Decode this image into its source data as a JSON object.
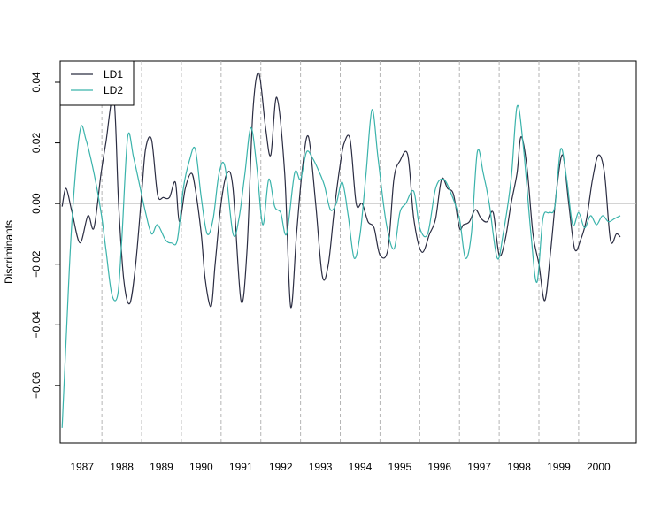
{
  "chart_data": {
    "type": "line",
    "title": "",
    "xlabel": "",
    "ylabel": "Discriminants",
    "xlim": [
      1986.45,
      2000.95
    ],
    "ylim": [
      -0.079,
      0.047
    ],
    "yticks": [
      -0.06,
      -0.04,
      -0.02,
      0.0,
      0.02,
      0.04
    ],
    "ytick_labels": [
      "−0.06",
      "−0.04",
      "−0.02",
      "0.00",
      "0.02",
      "0.04"
    ],
    "xticks": [
      1987,
      1988,
      1989,
      1990,
      1991,
      1992,
      1993,
      1994,
      1995,
      1996,
      1997,
      1998,
      1999,
      2000
    ],
    "xtick_labels": [
      "1987",
      "1988",
      "1989",
      "1990",
      "1991",
      "1992",
      "1993",
      "1994",
      "1995",
      "1996",
      "1997",
      "1998",
      "1999",
      "2000"
    ],
    "vlines": [
      1987.5,
      1988.5,
      1989.5,
      1990.5,
      1991.5,
      1992.5,
      1993.5,
      1994.5,
      1995.5,
      1996.5,
      1997.5,
      1998.5,
      1999.5
    ],
    "hline": 0,
    "grid": false,
    "legend": {
      "position": "top-left",
      "entries": [
        "LD1",
        "LD2"
      ]
    },
    "series": [
      {
        "name": "LD1",
        "color": "#2b2d42",
        "x": [
          1986.5,
          1986.6,
          1986.75,
          1986.95,
          1987.15,
          1987.3,
          1987.48,
          1987.6,
          1987.8,
          1987.92,
          1988.05,
          1988.2,
          1988.35,
          1988.5,
          1988.6,
          1988.75,
          1988.9,
          1989.05,
          1989.2,
          1989.35,
          1989.45,
          1989.6,
          1989.75,
          1989.85,
          1990.0,
          1990.1,
          1990.25,
          1990.35,
          1990.5,
          1990.65,
          1990.8,
          1991.0,
          1991.15,
          1991.3,
          1991.45,
          1991.62,
          1991.75,
          1991.9,
          1992.1,
          1992.25,
          1992.4,
          1992.55,
          1992.7,
          1992.88,
          1993.05,
          1993.2,
          1993.35,
          1993.5,
          1993.6,
          1993.75,
          1993.9,
          1994.05,
          1994.2,
          1994.35,
          1994.5,
          1994.7,
          1994.85,
          1995.0,
          1995.2,
          1995.35,
          1995.55,
          1995.75,
          1995.9,
          1996.05,
          1996.2,
          1996.35,
          1996.5,
          1996.6,
          1996.75,
          1996.9,
          1997.05,
          1997.2,
          1997.35,
          1997.5,
          1997.65,
          1997.8,
          1997.95,
          1998.05,
          1998.2,
          1998.35,
          1998.5,
          1998.65,
          1998.8,
          1998.95,
          1999.1,
          1999.25,
          1999.4,
          1999.55,
          1999.7,
          1999.85,
          2000.0,
          2000.15,
          2000.3,
          2000.45,
          2000.55
        ],
        "y": [
          -0.001,
          0.005,
          -0.003,
          -0.013,
          -0.004,
          -0.008,
          0.01,
          0.02,
          0.035,
          0.0,
          -0.025,
          -0.033,
          -0.02,
          0.003,
          0.018,
          0.021,
          0.003,
          0.002,
          0.002,
          0.007,
          -0.006,
          0.005,
          0.01,
          0.005,
          -0.01,
          -0.025,
          -0.034,
          -0.02,
          0.0,
          0.01,
          0.005,
          -0.032,
          -0.016,
          0.03,
          0.043,
          0.025,
          0.016,
          0.035,
          0.01,
          -0.034,
          -0.01,
          0.012,
          0.022,
          0.0,
          -0.024,
          -0.02,
          -0.002,
          0.013,
          0.02,
          0.021,
          0.0,
          0.0,
          -0.006,
          -0.008,
          -0.017,
          -0.015,
          0.008,
          0.014,
          0.016,
          -0.005,
          -0.016,
          -0.01,
          -0.005,
          0.008,
          0.005,
          0.003,
          -0.008,
          -0.007,
          -0.006,
          -0.002,
          -0.005,
          -0.006,
          -0.003,
          -0.017,
          -0.012,
          0.0,
          0.01,
          0.022,
          0.012,
          -0.01,
          -0.02,
          -0.032,
          -0.015,
          0.005,
          0.016,
          0.0,
          -0.015,
          -0.012,
          -0.005,
          0.008,
          0.016,
          0.01,
          -0.012,
          -0.01,
          -0.011
        ]
      },
      {
        "name": "LD2",
        "color": "#3ab3ab",
        "x": [
          1986.5,
          1986.6,
          1986.75,
          1986.95,
          1987.1,
          1987.3,
          1987.48,
          1987.6,
          1987.75,
          1987.9,
          1988.0,
          1988.15,
          1988.3,
          1988.5,
          1988.6,
          1988.75,
          1988.9,
          1989.1,
          1989.25,
          1989.4,
          1989.55,
          1989.7,
          1989.85,
          1990.0,
          1990.15,
          1990.3,
          1990.45,
          1990.6,
          1990.8,
          1990.95,
          1991.1,
          1991.25,
          1991.4,
          1991.55,
          1991.7,
          1991.85,
          1992.0,
          1992.15,
          1992.35,
          1992.5,
          1992.65,
          1992.8,
          1992.95,
          1993.1,
          1993.25,
          1993.4,
          1993.55,
          1993.7,
          1993.85,
          1994.0,
          1994.15,
          1994.3,
          1994.45,
          1994.65,
          1994.85,
          1995.0,
          1995.15,
          1995.35,
          1995.5,
          1995.7,
          1995.9,
          1996.1,
          1996.3,
          1996.5,
          1996.65,
          1996.8,
          1996.95,
          1997.1,
          1997.25,
          1997.45,
          1997.6,
          1997.8,
          1997.95,
          1998.1,
          1998.3,
          1998.45,
          1998.6,
          1998.75,
          1998.9,
          1999.05,
          1999.2,
          1999.35,
          1999.5,
          1999.65,
          1999.8,
          1999.95,
          2000.1,
          2000.25,
          2000.4,
          2000.55
        ],
        "y": [
          -0.074,
          -0.045,
          -0.005,
          0.024,
          0.021,
          0.01,
          -0.003,
          -0.015,
          -0.03,
          -0.03,
          -0.012,
          0.022,
          0.015,
          0.003,
          -0.003,
          -0.01,
          -0.007,
          -0.012,
          -0.013,
          -0.012,
          0.005,
          0.014,
          0.018,
          0.002,
          -0.01,
          -0.005,
          0.01,
          0.012,
          -0.01,
          -0.005,
          0.01,
          0.025,
          0.012,
          -0.007,
          0.008,
          -0.001,
          -0.003,
          -0.01,
          0.01,
          0.008,
          0.017,
          0.015,
          0.011,
          0.006,
          -0.002,
          0.0,
          0.007,
          -0.004,
          -0.018,
          -0.01,
          0.01,
          0.031,
          0.015,
          -0.006,
          -0.015,
          -0.003,
          0.0,
          0.004,
          -0.008,
          -0.01,
          0.005,
          0.008,
          0.003,
          -0.005,
          -0.018,
          -0.01,
          0.017,
          0.01,
          0.0,
          -0.018,
          -0.01,
          0.008,
          0.032,
          0.02,
          -0.01,
          -0.026,
          -0.005,
          -0.003,
          -0.001,
          0.018,
          0.008,
          -0.007,
          -0.003,
          -0.008,
          -0.004,
          -0.007,
          -0.004,
          -0.006,
          -0.005,
          -0.004
        ]
      }
    ]
  }
}
